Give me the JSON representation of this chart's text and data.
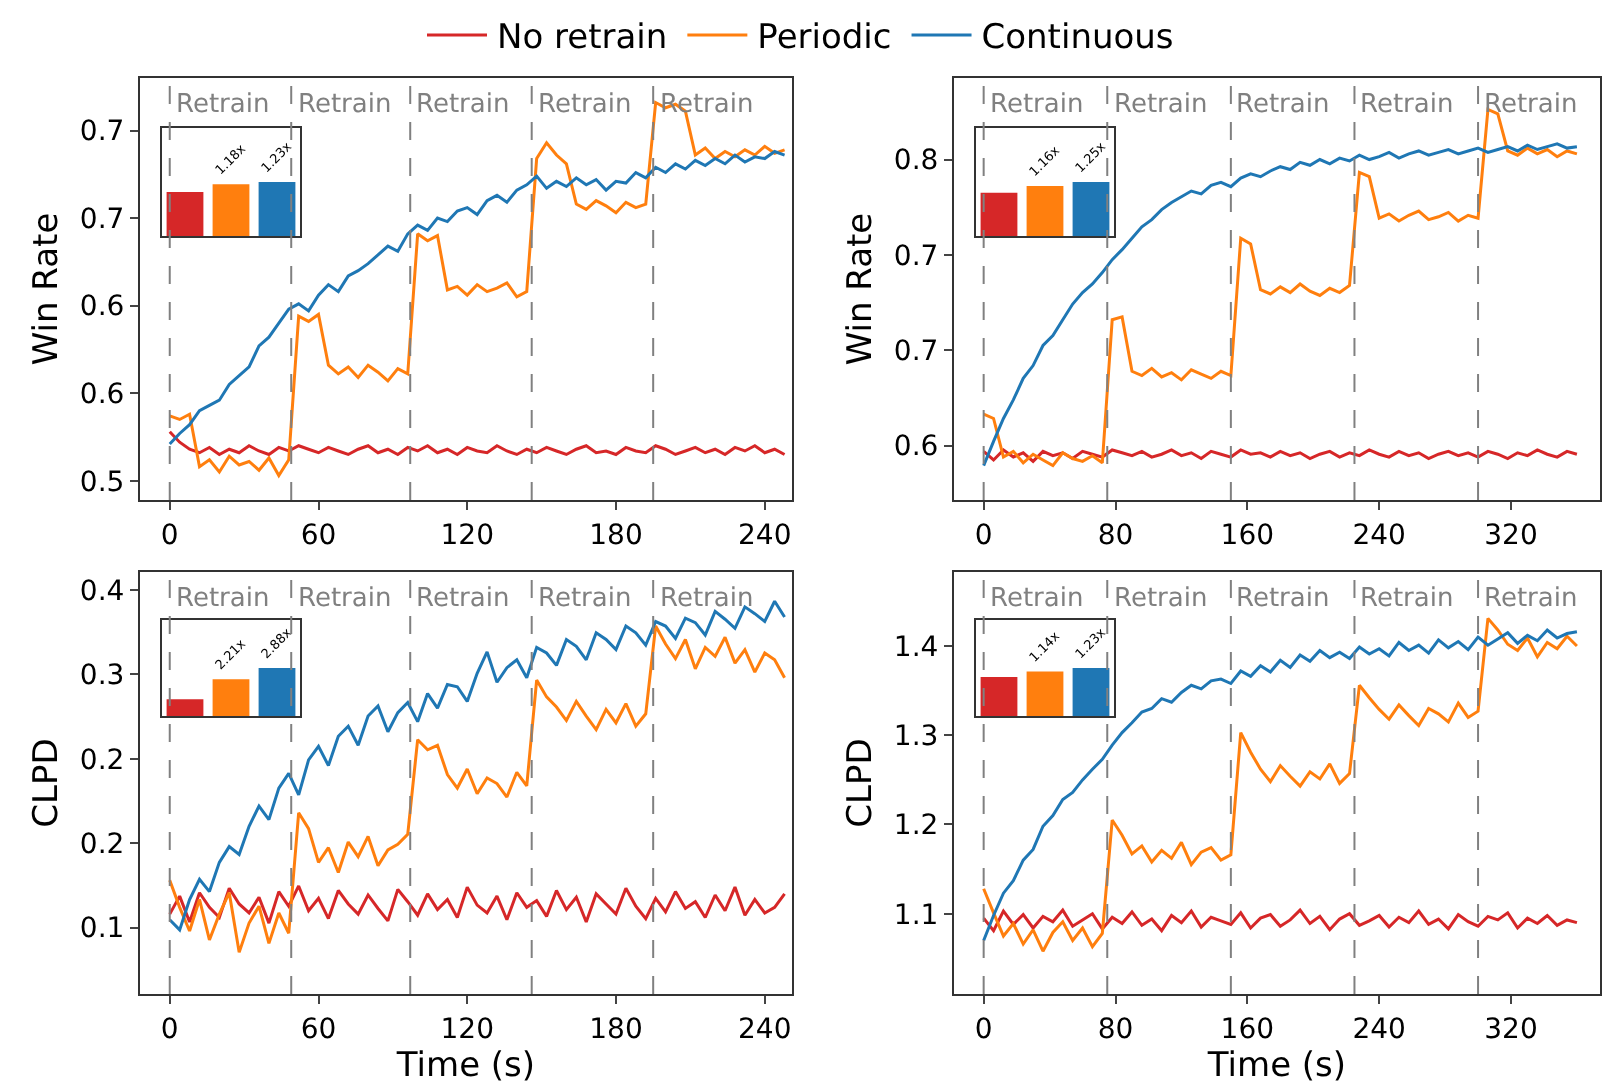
{
  "chart_data": [
    {
      "type": "line",
      "ylabel": "Win Rate",
      "legend": "top",
      "x": [
        0,
        4,
        8,
        12,
        16,
        20,
        24,
        28,
        32,
        36,
        40,
        44,
        48,
        52,
        56,
        60,
        64,
        68,
        72,
        76,
        80,
        84,
        88,
        92,
        96,
        100,
        104,
        108,
        112,
        116,
        120,
        124,
        128,
        132,
        136,
        140,
        144,
        148,
        152,
        156,
        160,
        164,
        168,
        172,
        176,
        180,
        184,
        188,
        192,
        196,
        200,
        204,
        208,
        212,
        216,
        220,
        224,
        228,
        232,
        236,
        240,
        244,
        248
      ],
      "xlim": [
        -12,
        251
      ],
      "xticks": [
        0,
        60,
        120,
        180,
        240
      ],
      "ylim": [
        0.489,
        0.73
      ],
      "yticks": [
        0.5,
        {
          "value": 0.55,
          "label": "0.6"
        },
        0.6,
        {
          "value": 0.65,
          "label": "0.7"
        },
        0.7
      ],
      "series": [
        {
          "name": "No retrain",
          "color": "#d62728",
          "values": [
            0.528,
            0.522,
            0.518,
            0.516,
            0.519,
            0.515,
            0.518,
            0.516,
            0.52,
            0.517,
            0.515,
            0.519,
            0.517,
            0.52,
            0.518,
            0.516,
            0.519,
            0.517,
            0.515,
            0.518,
            0.52,
            0.516,
            0.518,
            0.515,
            0.519,
            0.517,
            0.52,
            0.516,
            0.518,
            0.515,
            0.519,
            0.517,
            0.516,
            0.52,
            0.517,
            0.515,
            0.518,
            0.516,
            0.519,
            0.517,
            0.515,
            0.518,
            0.52,
            0.516,
            0.517,
            0.515,
            0.519,
            0.517,
            0.516,
            0.52,
            0.518,
            0.515,
            0.517,
            0.519,
            0.516,
            0.518,
            0.515,
            0.519,
            0.517,
            0.52,
            0.516,
            0.518,
            0.515
          ]
        },
        {
          "name": "Periodic",
          "color": "#ff7f0e",
          "values": [
            0.537,
            0.535,
            0.538,
            0.508,
            0.512,
            0.505,
            0.514,
            0.509,
            0.511,
            0.506,
            0.513,
            0.503,
            0.512,
            0.594,
            0.591,
            0.595,
            0.566,
            0.561,
            0.565,
            0.559,
            0.566,
            0.562,
            0.557,
            0.564,
            0.561,
            0.641,
            0.637,
            0.64,
            0.609,
            0.611,
            0.606,
            0.612,
            0.608,
            0.61,
            0.613,
            0.605,
            0.608,
            0.684,
            0.693,
            0.686,
            0.681,
            0.658,
            0.655,
            0.66,
            0.657,
            0.653,
            0.659,
            0.656,
            0.658,
            0.716,
            0.713,
            0.715,
            0.711,
            0.686,
            0.69,
            0.684,
            0.688,
            0.685,
            0.689,
            0.686,
            0.691,
            0.687,
            0.689
          ]
        },
        {
          "name": "Continuous",
          "color": "#1f77b4",
          "values": [
            0.521,
            0.527,
            0.532,
            0.54,
            0.543,
            0.546,
            0.555,
            0.56,
            0.565,
            0.577,
            0.582,
            0.59,
            0.598,
            0.601,
            0.597,
            0.606,
            0.612,
            0.608,
            0.617,
            0.62,
            0.624,
            0.629,
            0.634,
            0.631,
            0.641,
            0.646,
            0.643,
            0.65,
            0.648,
            0.654,
            0.656,
            0.652,
            0.66,
            0.663,
            0.659,
            0.666,
            0.669,
            0.674,
            0.667,
            0.671,
            0.668,
            0.673,
            0.669,
            0.672,
            0.666,
            0.671,
            0.67,
            0.676,
            0.673,
            0.679,
            0.676,
            0.681,
            0.678,
            0.683,
            0.68,
            0.684,
            0.681,
            0.686,
            0.682,
            0.685,
            0.684,
            0.688,
            0.686
          ]
        }
      ],
      "ref_lines": [
        {
          "axis": "x",
          "value": 0,
          "label": "Retrain",
          "color": "#808080",
          "line_style": "dashed"
        },
        {
          "axis": "x",
          "value": 49,
          "label": "Retrain",
          "color": "#808080",
          "line_style": "dashed"
        },
        {
          "axis": "x",
          "value": 97,
          "label": "Retrain",
          "color": "#808080",
          "line_style": "dashed"
        },
        {
          "axis": "x",
          "value": 146,
          "label": "Retrain",
          "color": "#808080",
          "line_style": "dashed"
        },
        {
          "axis": "x",
          "value": 195,
          "label": "Retrain",
          "color": "#808080",
          "line_style": "dashed"
        }
      ]
    },
    {
      "type": "bar",
      "tick_labels": false,
      "categories": [
        null,
        null,
        null
      ],
      "values": [
        1,
        1.18,
        1.23
      ],
      "colors": [
        "#d62728",
        "#ff7f0e",
        "#1f77b4"
      ],
      "value_labels": [
        null,
        "1.18x",
        "1.23x"
      ]
    },
    {
      "type": "line",
      "ylabel": "Win Rate",
      "x": [
        0,
        6,
        12,
        18,
        24,
        30,
        36,
        42,
        48,
        54,
        60,
        66,
        72,
        78,
        84,
        90,
        96,
        102,
        108,
        114,
        120,
        126,
        132,
        138,
        144,
        150,
        156,
        162,
        168,
        174,
        180,
        186,
        192,
        198,
        204,
        210,
        216,
        222,
        228,
        234,
        240,
        246,
        252,
        258,
        264,
        270,
        276,
        282,
        288,
        294,
        300,
        306,
        312,
        318,
        324,
        330,
        336,
        342,
        348,
        354,
        360
      ],
      "xlim": [
        -18,
        374
      ],
      "xticks": [
        0,
        80,
        160,
        240,
        320
      ],
      "ylim": [
        0.562,
        0.857
      ],
      "yticks": [
        0.6,
        {
          "value": 0.667,
          "label": "0.7"
        },
        {
          "value": 0.733,
          "label": "0.7"
        },
        0.8
      ],
      "series": [
        {
          "name": "No retrain",
          "color": "#d62728",
          "values": [
            0.596,
            0.59,
            0.597,
            0.592,
            0.595,
            0.589,
            0.596,
            0.593,
            0.595,
            0.591,
            0.596,
            0.594,
            0.592,
            0.597,
            0.595,
            0.593,
            0.596,
            0.592,
            0.594,
            0.597,
            0.593,
            0.595,
            0.591,
            0.596,
            0.594,
            0.592,
            0.597,
            0.594,
            0.595,
            0.592,
            0.596,
            0.593,
            0.595,
            0.591,
            0.594,
            0.596,
            0.592,
            0.595,
            0.593,
            0.597,
            0.594,
            0.592,
            0.596,
            0.593,
            0.595,
            0.591,
            0.594,
            0.596,
            0.593,
            0.595,
            0.592,
            0.596,
            0.594,
            0.591,
            0.595,
            0.593,
            0.597,
            0.594,
            0.592,
            0.596,
            0.594
          ]
        },
        {
          "name": "Periodic",
          "color": "#ff7f0e",
          "values": [
            0.622,
            0.619,
            0.592,
            0.596,
            0.588,
            0.594,
            0.59,
            0.586,
            0.595,
            0.591,
            0.589,
            0.593,
            0.588,
            0.688,
            0.69,
            0.652,
            0.649,
            0.654,
            0.648,
            0.651,
            0.646,
            0.653,
            0.65,
            0.647,
            0.652,
            0.649,
            0.745,
            0.741,
            0.709,
            0.706,
            0.711,
            0.707,
            0.713,
            0.708,
            0.705,
            0.71,
            0.707,
            0.712,
            0.791,
            0.788,
            0.759,
            0.762,
            0.757,
            0.761,
            0.764,
            0.758,
            0.76,
            0.763,
            0.757,
            0.761,
            0.759,
            0.835,
            0.832,
            0.806,
            0.803,
            0.808,
            0.804,
            0.807,
            0.802,
            0.806,
            0.804
          ]
        },
        {
          "name": "Continuous",
          "color": "#1f77b4",
          "values": [
            0.586,
            0.603,
            0.619,
            0.632,
            0.647,
            0.656,
            0.67,
            0.677,
            0.688,
            0.699,
            0.707,
            0.713,
            0.721,
            0.73,
            0.737,
            0.745,
            0.753,
            0.758,
            0.765,
            0.77,
            0.774,
            0.778,
            0.776,
            0.782,
            0.784,
            0.781,
            0.787,
            0.79,
            0.788,
            0.792,
            0.795,
            0.793,
            0.798,
            0.796,
            0.8,
            0.797,
            0.801,
            0.799,
            0.803,
            0.8,
            0.802,
            0.805,
            0.801,
            0.804,
            0.806,
            0.803,
            0.805,
            0.807,
            0.804,
            0.806,
            0.808,
            0.805,
            0.807,
            0.809,
            0.806,
            0.81,
            0.807,
            0.809,
            0.811,
            0.808,
            0.809
          ]
        }
      ],
      "ref_lines": [
        {
          "axis": "x",
          "value": 0,
          "label": "Retrain",
          "color": "#808080",
          "line_style": "dashed"
        },
        {
          "axis": "x",
          "value": 75,
          "label": "Retrain",
          "color": "#808080",
          "line_style": "dashed"
        },
        {
          "axis": "x",
          "value": 150,
          "label": "Retrain",
          "color": "#808080",
          "line_style": "dashed"
        },
        {
          "axis": "x",
          "value": 225,
          "label": "Retrain",
          "color": "#808080",
          "line_style": "dashed"
        },
        {
          "axis": "x",
          "value": 300,
          "label": "Retrain",
          "color": "#808080",
          "line_style": "dashed"
        }
      ]
    },
    {
      "type": "bar",
      "tick_labels": false,
      "categories": [
        null,
        null,
        null
      ],
      "values": [
        1,
        1.16,
        1.25
      ],
      "colors": [
        "#d62728",
        "#ff7f0e",
        "#1f77b4"
      ],
      "value_labels": [
        null,
        "1.16x",
        "1.25x"
      ]
    },
    {
      "type": "line",
      "ylabel": "CLPD",
      "xlabel": "Time (s)",
      "x": [
        0,
        4,
        8,
        12,
        16,
        20,
        24,
        28,
        32,
        36,
        40,
        44,
        48,
        52,
        56,
        60,
        64,
        68,
        72,
        76,
        80,
        84,
        88,
        92,
        96,
        100,
        104,
        108,
        112,
        116,
        120,
        124,
        128,
        132,
        136,
        140,
        144,
        148,
        152,
        156,
        160,
        164,
        168,
        172,
        176,
        180,
        184,
        188,
        192,
        196,
        200,
        204,
        208,
        212,
        216,
        220,
        224,
        228,
        232,
        236,
        240,
        244,
        248
      ],
      "xlim": [
        -12,
        251
      ],
      "xticks": [
        0,
        60,
        120,
        180,
        240
      ],
      "ylim": [
        0.041,
        0.416
      ],
      "yticks": [
        0.1,
        {
          "value": 0.175,
          "label": "0.2"
        },
        {
          "value": 0.25,
          "label": "0.2"
        },
        {
          "value": 0.325,
          "label": "0.3"
        },
        0.4
      ],
      "series": [
        {
          "name": "No retrain",
          "color": "#d62728",
          "values": [
            0.112,
            0.128,
            0.105,
            0.131,
            0.118,
            0.109,
            0.135,
            0.121,
            0.113,
            0.127,
            0.104,
            0.132,
            0.119,
            0.137,
            0.115,
            0.126,
            0.108,
            0.133,
            0.121,
            0.112,
            0.129,
            0.117,
            0.106,
            0.134,
            0.123,
            0.111,
            0.13,
            0.116,
            0.125,
            0.109,
            0.136,
            0.12,
            0.113,
            0.128,
            0.107,
            0.131,
            0.118,
            0.124,
            0.11,
            0.133,
            0.116,
            0.127,
            0.105,
            0.13,
            0.121,
            0.112,
            0.135,
            0.119,
            0.108,
            0.126,
            0.114,
            0.132,
            0.117,
            0.123,
            0.109,
            0.129,
            0.115,
            0.136,
            0.111,
            0.125,
            0.113,
            0.118,
            0.13
          ]
        },
        {
          "name": "Periodic",
          "color": "#ff7f0e",
          "values": [
            0.142,
            0.118,
            0.097,
            0.125,
            0.089,
            0.112,
            0.131,
            0.078,
            0.104,
            0.119,
            0.086,
            0.113,
            0.095,
            0.202,
            0.188,
            0.158,
            0.171,
            0.149,
            0.176,
            0.163,
            0.181,
            0.155,
            0.169,
            0.174,
            0.183,
            0.267,
            0.258,
            0.262,
            0.236,
            0.224,
            0.241,
            0.219,
            0.233,
            0.228,
            0.216,
            0.238,
            0.226,
            0.32,
            0.305,
            0.296,
            0.284,
            0.301,
            0.288,
            0.276,
            0.294,
            0.282,
            0.299,
            0.279,
            0.29,
            0.368,
            0.352,
            0.339,
            0.356,
            0.33,
            0.349,
            0.341,
            0.358,
            0.335,
            0.347,
            0.327,
            0.344,
            0.338,
            0.322
          ]
        },
        {
          "name": "Continuous",
          "color": "#1f77b4",
          "values": [
            0.107,
            0.098,
            0.125,
            0.143,
            0.132,
            0.158,
            0.172,
            0.165,
            0.19,
            0.208,
            0.196,
            0.224,
            0.237,
            0.218,
            0.249,
            0.261,
            0.244,
            0.27,
            0.279,
            0.262,
            0.288,
            0.297,
            0.274,
            0.291,
            0.3,
            0.283,
            0.308,
            0.295,
            0.316,
            0.314,
            0.301,
            0.326,
            0.345,
            0.318,
            0.331,
            0.338,
            0.322,
            0.349,
            0.344,
            0.333,
            0.356,
            0.35,
            0.338,
            0.362,
            0.356,
            0.347,
            0.368,
            0.362,
            0.351,
            0.372,
            0.368,
            0.357,
            0.375,
            0.371,
            0.36,
            0.381,
            0.374,
            0.366,
            0.385,
            0.379,
            0.372,
            0.39,
            0.376
          ]
        }
      ],
      "ref_lines": [
        {
          "axis": "x",
          "value": 0,
          "label": "Retrain",
          "color": "#808080",
          "line_style": "dashed"
        },
        {
          "axis": "x",
          "value": 49,
          "label": "Retrain",
          "color": "#808080",
          "line_style": "dashed"
        },
        {
          "axis": "x",
          "value": 97,
          "label": "Retrain",
          "color": "#808080",
          "line_style": "dashed"
        },
        {
          "axis": "x",
          "value": 146,
          "label": "Retrain",
          "color": "#808080",
          "line_style": "dashed"
        },
        {
          "axis": "x",
          "value": 195,
          "label": "Retrain",
          "color": "#808080",
          "line_style": "dashed"
        }
      ]
    },
    {
      "type": "bar",
      "tick_labels": false,
      "categories": [
        null,
        null,
        null
      ],
      "values": [
        1,
        2.21,
        2.88
      ],
      "colors": [
        "#d62728",
        "#ff7f0e",
        "#1f77b4"
      ],
      "value_labels": [
        null,
        "2.21x",
        "2.88x"
      ]
    },
    {
      "type": "line",
      "ylabel": "CLPD",
      "xlabel": "Time (s)",
      "x": [
        0,
        6,
        12,
        18,
        24,
        30,
        36,
        42,
        48,
        54,
        60,
        66,
        72,
        78,
        84,
        90,
        96,
        102,
        108,
        114,
        120,
        126,
        132,
        138,
        144,
        150,
        156,
        162,
        168,
        174,
        180,
        186,
        192,
        198,
        204,
        210,
        216,
        222,
        228,
        234,
        240,
        246,
        252,
        258,
        264,
        270,
        276,
        282,
        288,
        294,
        300,
        306,
        312,
        318,
        324,
        330,
        336,
        342,
        348,
        354,
        360
      ],
      "xlim": [
        -18,
        374
      ],
      "xticks": [
        0,
        80,
        160,
        240,
        320
      ],
      "ylim": [
        1.01,
        1.483
      ],
      "yticks": [
        1.1,
        1.2,
        1.3,
        1.4
      ],
      "series": [
        {
          "name": "No retrain",
          "color": "#d62728",
          "values": [
            1.095,
            1.081,
            1.103,
            1.088,
            1.099,
            1.084,
            1.097,
            1.091,
            1.104,
            1.086,
            1.093,
            1.1,
            1.083,
            1.096,
            1.089,
            1.102,
            1.087,
            1.094,
            1.081,
            1.098,
            1.09,
            1.103,
            1.085,
            1.096,
            1.092,
            1.088,
            1.101,
            1.084,
            1.095,
            1.099,
            1.086,
            1.093,
            1.104,
            1.089,
            1.097,
            1.082,
            1.094,
            1.1,
            1.087,
            1.092,
            1.098,
            1.085,
            1.096,
            1.09,
            1.103,
            1.088,
            1.094,
            1.083,
            1.099,
            1.091,
            1.086,
            1.097,
            1.093,
            1.101,
            1.084,
            1.095,
            1.089,
            1.098,
            1.087,
            1.093,
            1.09
          ]
        },
        {
          "name": "Periodic",
          "color": "#ff7f0e",
          "values": [
            1.128,
            1.101,
            1.075,
            1.089,
            1.066,
            1.082,
            1.058,
            1.079,
            1.091,
            1.07,
            1.084,
            1.063,
            1.078,
            1.205,
            1.188,
            1.167,
            1.176,
            1.158,
            1.171,
            1.162,
            1.18,
            1.155,
            1.169,
            1.174,
            1.16,
            1.166,
            1.303,
            1.281,
            1.262,
            1.248,
            1.266,
            1.254,
            1.243,
            1.259,
            1.251,
            1.268,
            1.246,
            1.257,
            1.356,
            1.342,
            1.329,
            1.318,
            1.334,
            1.322,
            1.311,
            1.33,
            1.324,
            1.315,
            1.336,
            1.32,
            1.327,
            1.431,
            1.418,
            1.402,
            1.395,
            1.409,
            1.388,
            1.404,
            1.397,
            1.411,
            1.4
          ]
        },
        {
          "name": "Continuous",
          "color": "#1f77b4",
          "values": [
            1.07,
            1.098,
            1.123,
            1.137,
            1.16,
            1.172,
            1.198,
            1.21,
            1.228,
            1.236,
            1.25,
            1.262,
            1.273,
            1.289,
            1.303,
            1.314,
            1.326,
            1.33,
            1.341,
            1.337,
            1.348,
            1.356,
            1.352,
            1.361,
            1.363,
            1.358,
            1.372,
            1.366,
            1.378,
            1.371,
            1.384,
            1.376,
            1.39,
            1.383,
            1.395,
            1.387,
            1.393,
            1.386,
            1.399,
            1.391,
            1.397,
            1.389,
            1.404,
            1.395,
            1.401,
            1.392,
            1.407,
            1.398,
            1.405,
            1.396,
            1.41,
            1.401,
            1.408,
            1.415,
            1.403,
            1.412,
            1.406,
            1.418,
            1.409,
            1.414,
            1.416
          ]
        }
      ],
      "ref_lines": [
        {
          "axis": "x",
          "value": 0,
          "label": "Retrain",
          "color": "#808080",
          "line_style": "dashed"
        },
        {
          "axis": "x",
          "value": 75,
          "label": "Retrain",
          "color": "#808080",
          "line_style": "dashed"
        },
        {
          "axis": "x",
          "value": 150,
          "label": "Retrain",
          "color": "#808080",
          "line_style": "dashed"
        },
        {
          "axis": "x",
          "value": 225,
          "label": "Retrain",
          "color": "#808080",
          "line_style": "dashed"
        },
        {
          "axis": "x",
          "value": 300,
          "label": "Retrain",
          "color": "#808080",
          "line_style": "dashed"
        }
      ]
    },
    {
      "type": "bar",
      "tick_labels": false,
      "categories": [
        null,
        null,
        null
      ],
      "values": [
        1,
        1.14,
        1.23
      ],
      "colors": [
        "#d62728",
        "#ff7f0e",
        "#1f77b4"
      ],
      "value_labels": [
        null,
        "1.14x",
        "1.23x"
      ]
    }
  ]
}
